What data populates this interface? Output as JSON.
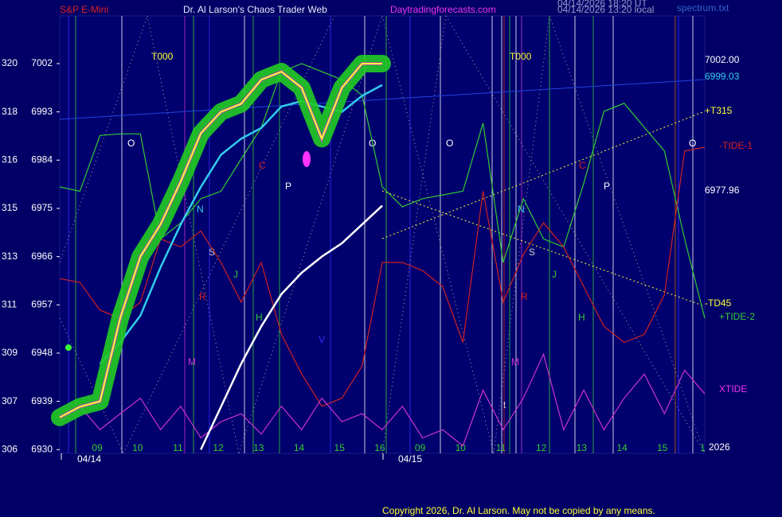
{
  "chart_data": {
    "type": "line",
    "title": "Dr. Al Larson's Chaos Trader Web",
    "symbol": "S&P E-Mini",
    "site": "Daytradingforecasts.com",
    "timestamps": [
      "04/14/2026 18:20 UT",
      "04/14/2026 13:20 local"
    ],
    "file": "spectrum.txt",
    "copyright": "Copyright 2026, Dr. Al Larson. May not be copied by any means.",
    "ylim": [
      6929.3,
      7010.9
    ],
    "yticks": [
      7002,
      6993,
      6984,
      6975,
      6966,
      6957,
      6948,
      6939,
      6930
    ],
    "sp_points": [
      320,
      318,
      316,
      315,
      313,
      311,
      309,
      307,
      306
    ],
    "xlim": [
      0,
      16
    ],
    "x": [
      0,
      0.5,
      1,
      1.5,
      2,
      2.5,
      3,
      3.5,
      4,
      4.5,
      5,
      5.5,
      6,
      6.5,
      7,
      7.5,
      8,
      8.5,
      9,
      9.5,
      10,
      10.5,
      11,
      11.5,
      12,
      12.5,
      13,
      13.5,
      14,
      14.5,
      15,
      15.5,
      16
    ],
    "hour_labels": [
      "09",
      "10",
      "11",
      "12",
      "13",
      "14",
      "15",
      "16",
      "09",
      "10",
      "11",
      "12",
      "13",
      "14",
      "15",
      "1"
    ],
    "dates": [
      "04/14",
      "04/15"
    ],
    "right_labels": [
      "7002.00",
      "6999.03",
      "+T315",
      "-TIDE-1",
      "6977.96",
      "-TD45",
      "+TIDE-2",
      "XTIDE",
      "2026"
    ],
    "markers": [
      "T000",
      "T000",
      "O",
      "O",
      "O",
      "O",
      "P",
      "P",
      "N",
      "N",
      "S",
      "S",
      "J",
      "J",
      "H",
      "H",
      "R",
      "R",
      "M",
      "M",
      "C",
      "C",
      "V",
      "t"
    ],
    "series": [
      {
        "name": "green",
        "color": "#33cc33",
        "values": [
          6979.0,
          6978.2,
          6988.6,
          6988.9,
          6988.9,
          6969.3,
          6972.3,
          6976.8,
          6978.2,
          6984.2,
          6990.1,
          7000.5,
          7002,
          7000.5,
          6999,
          6996.1,
          6979.0,
          6975.3,
          6976.8,
          6977.5,
          6978.2,
          6990.9,
          6964.9,
          6976.8,
          6969.3,
          6967.8,
          6979.7,
          6993.1,
          6994.6,
          6990.1,
          6985.7,
          6969.3,
          6954.5
        ]
      },
      {
        "name": "red",
        "color": "#cc2222",
        "values": [
          6961.9,
          6961.2,
          6956.0,
          6954.5,
          6957.5,
          6969.3,
          6967.8,
          6970.8,
          6964.9,
          6957.5,
          6964.9,
          6951.5,
          6944.1,
          6938.1,
          6939.6,
          6945.6,
          6964.9,
          6964.9,
          6963.4,
          6960.4,
          6950.0,
          6978.2,
          6957.5,
          6966.4,
          6972.3,
          6967.8,
          6960.4,
          6953.0,
          6950.0,
          6951.5,
          6958.9,
          6985.7,
          6986.4
        ]
      },
      {
        "name": "magenta",
        "color": "#cc33cc",
        "values": [
          6935.2,
          6938.1,
          6933.7,
          6936.7,
          6939.6,
          6933.7,
          6938.1,
          6932.2,
          6935.2,
          6936.7,
          6932.9,
          6938.1,
          6933.7,
          6939.6,
          6935.2,
          6936.7,
          6933.7,
          6938.1,
          6932.2,
          6933.7,
          6930.7,
          6941.1,
          6933.7,
          6939.6,
          6947.8,
          6933.7,
          6941.1,
          6933.7,
          6939.6,
          6944.1,
          6936.7,
          6944.8,
          6940.4
        ]
      },
      {
        "name": "white",
        "color": "#ffffff",
        "values": [
          null,
          null,
          null,
          null,
          null,
          null,
          null,
          6930,
          6938,
          6946,
          6953,
          6959,
          6963,
          6966,
          6968.5,
          6972,
          6975.5,
          null,
          null,
          null,
          null,
          null,
          null,
          null,
          null,
          null,
          null,
          null,
          null,
          null,
          null,
          null,
          null
        ]
      },
      {
        "name": "cyan",
        "color": "#33ccee",
        "values": [
          null,
          null,
          6946,
          6950,
          6955,
          6964,
          6972,
          6979,
          6985,
          6988,
          6990,
          6994,
          6995,
          6994,
          6993,
          6996,
          6998,
          null,
          null,
          null,
          null,
          null,
          null,
          null,
          null,
          null,
          null,
          null,
          null,
          null,
          null,
          null,
          null
        ]
      },
      {
        "name": "price",
        "color": "#ffff33",
        "values": [
          6936,
          6938,
          6939,
          6954.5,
          6966,
          6972,
          6980,
          6989,
          6993,
          6994.5,
          6999,
          7000.5,
          6997.5,
          6988,
          6997.5,
          7002,
          7002,
          null,
          null,
          null,
          null,
          null,
          null,
          null,
          null,
          null,
          null,
          null,
          null,
          null,
          null,
          null,
          null
        ]
      }
    ]
  }
}
